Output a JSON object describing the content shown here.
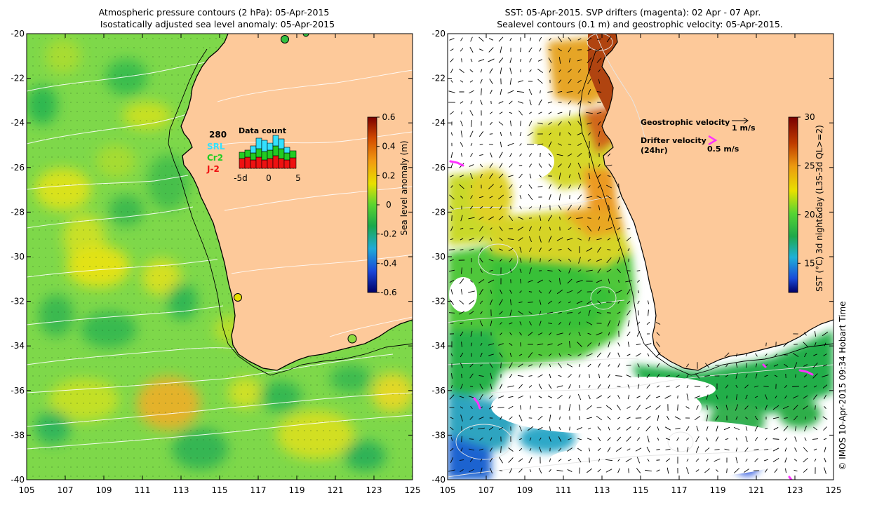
{
  "left_panel": {
    "title_line1": "Atmospheric pressure contours (2 hPa): 05-Apr-2015",
    "title_line2": "Isostatically adjusted sea level anomaly: 05-Apr-2015",
    "x_ticks": [
      "105",
      "107",
      "109",
      "111",
      "113",
      "115",
      "117",
      "119",
      "121",
      "123",
      "125"
    ],
    "y_ticks": [
      "-20",
      "-22",
      "-24",
      "-26",
      "-28",
      "-30",
      "-32",
      "-34",
      "-36",
      "-38",
      "-40"
    ],
    "colorbar": {
      "label": "Sea level anomaly (m)",
      "ticks": [
        "0.6",
        "0.4",
        "0.2",
        "0",
        "-0.2",
        "-0.4",
        "-0.6"
      ],
      "range": [
        -0.6,
        0.6
      ]
    },
    "data_count": {
      "title": "Data count",
      "total": "280",
      "legend": [
        {
          "label": "SRL",
          "color": "#33e0ff"
        },
        {
          "label": "Cr2",
          "color": "#22cc22"
        },
        {
          "label": "J-2",
          "color": "#ee1111"
        }
      ],
      "x_ticks": [
        "-5d",
        "0",
        "5"
      ]
    },
    "colors": {
      "land": "#fdc99a",
      "sea_base": "#7ed84a",
      "coast": "#000000"
    }
  },
  "right_panel": {
    "title_line1": "SST: 05-Apr-2015. SVP drifters (magenta): 02 Apr - 07 Apr.",
    "title_line2": "Sealevel contours (0.1 m) and geostrophic velocity: 05-Apr-2015.",
    "x_ticks": [
      "105",
      "107",
      "109",
      "111",
      "113",
      "115",
      "117",
      "119",
      "121",
      "123",
      "125"
    ],
    "y_ticks": [
      "-20",
      "-22",
      "-24",
      "-26",
      "-28",
      "-30",
      "-32",
      "-34",
      "-36",
      "-38",
      "-40"
    ],
    "colorbar": {
      "label": "SST (°C) 3d night&day (L3S-3d QL>=2)",
      "ticks": [
        "30",
        "25",
        "20",
        "15"
      ],
      "range": [
        12,
        30
      ]
    },
    "legend": {
      "geo_label": "Geostrophic velocity",
      "geo_scale": "1 m/s",
      "drifter_label_1": "Drifter velocity",
      "drifter_label_2": "(24hr)",
      "drifter_scale": "0.5 m/s"
    },
    "colors": {
      "land": "#fdc99a",
      "drifter": "#ff33ff"
    }
  },
  "credit": "© IMOS 10-Apr-2015 09:34 Hobart Time"
}
